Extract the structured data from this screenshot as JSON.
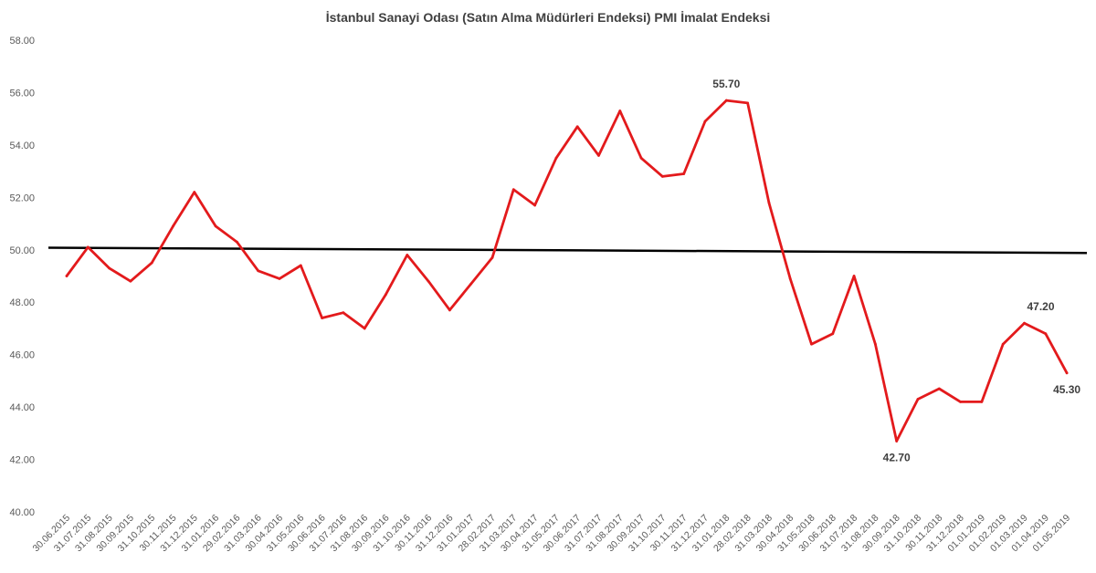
{
  "chart_data": {
    "type": "line",
    "title": "İstanbul Sanayi Odası (Satın Alma Müdürleri Endeksi) PMI İmalat Endeksi",
    "xlabel": "",
    "ylabel": "",
    "ylim": [
      40,
      58
    ],
    "y_ticks": [
      "40.00",
      "42.00",
      "44.00",
      "46.00",
      "48.00",
      "50.00",
      "52.00",
      "54.00",
      "56.00",
      "58.00"
    ],
    "grid": false,
    "legend": "none",
    "categories": [
      "30.06.2015",
      "31.07.2015",
      "31.08.2015",
      "30.09.2015",
      "31.10.2015",
      "30.11.2015",
      "31.12.2015",
      "31.01.2016",
      "29.02.2016",
      "31.03.2016",
      "30.04.2016",
      "31.05.2016",
      "30.06.2016",
      "31.07.2016",
      "31.08.2016",
      "30.09.2016",
      "31.10.2016",
      "30.11.2016",
      "31.12.2016",
      "31.01.2017",
      "28.02.2017",
      "31.03.2017",
      "30.04.2017",
      "31.05.2017",
      "30.06.2017",
      "31.07.2017",
      "31.08.2017",
      "30.09.2017",
      "31.10.2017",
      "30.11.2017",
      "31.12.2017",
      "31.01.2018",
      "28.02.2018",
      "31.03.2018",
      "30.04.2018",
      "31.05.2018",
      "30.06.2018",
      "31.07.2018",
      "31.08.2018",
      "30.09.2018",
      "31.10.2018",
      "30.11.2018",
      "31.12.2018",
      "01.01.2019",
      "01.02.2019",
      "01.03.2019",
      "01.04.2019",
      "01.05.2019"
    ],
    "series": [
      {
        "color": "#e31a1c",
        "values": [
          49.0,
          50.1,
          49.3,
          48.8,
          49.5,
          50.9,
          52.2,
          50.9,
          50.3,
          49.2,
          48.9,
          49.4,
          47.4,
          47.6,
          47.0,
          48.3,
          49.8,
          48.8,
          47.7,
          48.7,
          49.7,
          52.3,
          51.7,
          53.5,
          54.7,
          53.6,
          55.3,
          53.5,
          52.8,
          52.9,
          54.9,
          55.7,
          55.6,
          51.8,
          48.9,
          46.4,
          46.8,
          49.0,
          46.4,
          42.7,
          44.3,
          44.7,
          44.2,
          44.2,
          46.4,
          47.2,
          46.8,
          45.3
        ]
      }
    ],
    "reference_line": {
      "color": "#000000",
      "start": 50.08,
      "end": 49.88
    },
    "annotations": [
      {
        "index": 31,
        "text": "55.70",
        "position": "above"
      },
      {
        "index": 39,
        "text": "42.70",
        "position": "below"
      },
      {
        "index": 45,
        "text": "47.20",
        "position": "above-right"
      },
      {
        "index": 47,
        "text": "45.30",
        "position": "below"
      }
    ]
  }
}
